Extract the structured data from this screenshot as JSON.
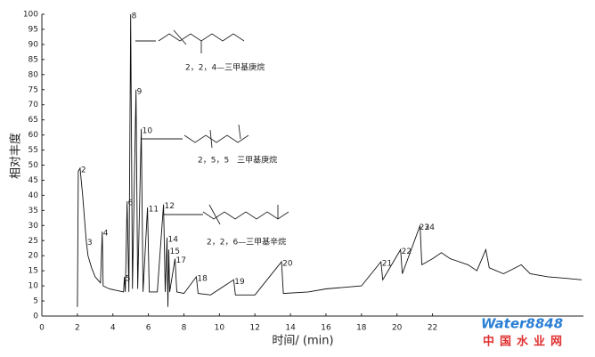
{
  "chart_data": {
    "type": "line",
    "xlabel": "时间/ (min)",
    "ylabel": "相对丰度",
    "x": [
      2.0,
      2.05,
      2.15,
      2.3,
      2.5,
      2.6,
      2.8,
      3.0,
      3.3,
      3.4,
      3.45,
      3.8,
      4.2,
      4.6,
      4.65,
      4.7,
      4.8,
      4.9,
      5.0,
      5.1,
      5.3,
      5.4,
      5.6,
      5.7,
      5.95,
      6.05,
      6.5,
      6.85,
      6.95,
      7.05,
      7.1,
      7.15,
      7.2,
      7.5,
      7.6,
      8.0,
      8.7,
      8.8,
      9.5,
      10.8,
      10.9,
      12,
      13.5,
      13.6,
      15,
      16,
      17,
      18,
      19.1,
      19.2,
      20.2,
      20.3,
      21.3,
      21.4,
      22,
      22.5,
      23,
      24,
      24.5,
      25,
      25.2,
      26,
      27,
      27.5,
      28.5,
      29.5,
      30.4
    ],
    "values": [
      3,
      48,
      49,
      40,
      25,
      20,
      16,
      13,
      11,
      28,
      10,
      9,
      8.5,
      8,
      13,
      8,
      38,
      8,
      100,
      9,
      75,
      9,
      62,
      8,
      36,
      8,
      8,
      37,
      8,
      26,
      3,
      22,
      8,
      19,
      8,
      7.5,
      13,
      7.5,
      7,
      12,
      7,
      7,
      18,
      7.5,
      8,
      9,
      9.5,
      10,
      18,
      12,
      22,
      14,
      30,
      17,
      19,
      21,
      19,
      17,
      15,
      22,
      16,
      14,
      17,
      14,
      13,
      12.5,
      12
    ],
    "color": "#111111",
    "xlim": [
      0,
      30.5
    ],
    "ylim": [
      0,
      100
    ],
    "xticks": [
      0,
      2,
      4,
      6,
      8,
      10,
      12,
      14,
      16,
      18,
      20,
      22
    ],
    "yticks": [
      0,
      5,
      10,
      15,
      20,
      25,
      30,
      35,
      40,
      45,
      50,
      55,
      60,
      65,
      70,
      75,
      80,
      85,
      90,
      95,
      100
    ],
    "peaks": [
      {
        "label": "2",
        "x": 2.15,
        "y": 49
      },
      {
        "label": "3",
        "x": 2.5,
        "y": 25
      },
      {
        "label": "4",
        "x": 3.4,
        "y": 28
      },
      {
        "label": "5",
        "x": 4.65,
        "y": 13
      },
      {
        "label": "6",
        "x": 4.8,
        "y": 38
      },
      {
        "label": "8",
        "x": 5.0,
        "y": 100
      },
      {
        "label": "9",
        "x": 5.3,
        "y": 75
      },
      {
        "label": "10",
        "x": 5.6,
        "y": 62
      },
      {
        "label": "11",
        "x": 5.95,
        "y": 36
      },
      {
        "label": "12",
        "x": 6.85,
        "y": 37
      },
      {
        "label": "14",
        "x": 7.05,
        "y": 26
      },
      {
        "label": "15",
        "x": 7.15,
        "y": 22
      },
      {
        "label": "17",
        "x": 7.5,
        "y": 19
      },
      {
        "label": "18",
        "x": 8.7,
        "y": 13
      },
      {
        "label": "19",
        "x": 10.8,
        "y": 12
      },
      {
        "label": "20",
        "x": 13.5,
        "y": 18
      },
      {
        "label": "21",
        "x": 19.1,
        "y": 18
      },
      {
        "label": "22",
        "x": 20.2,
        "y": 22
      },
      {
        "label": "23",
        "x": 21.2,
        "y": 30
      },
      {
        "label": "24",
        "x": 21.5,
        "y": 30
      }
    ],
    "annotations": [
      "2，2，4—三甲基庚烷",
      "2，5，5　三甲基庚烷",
      "2，2，6—三甲基辛烷"
    ],
    "watermark": [
      "Water8848",
      "中国水业网"
    ]
  }
}
